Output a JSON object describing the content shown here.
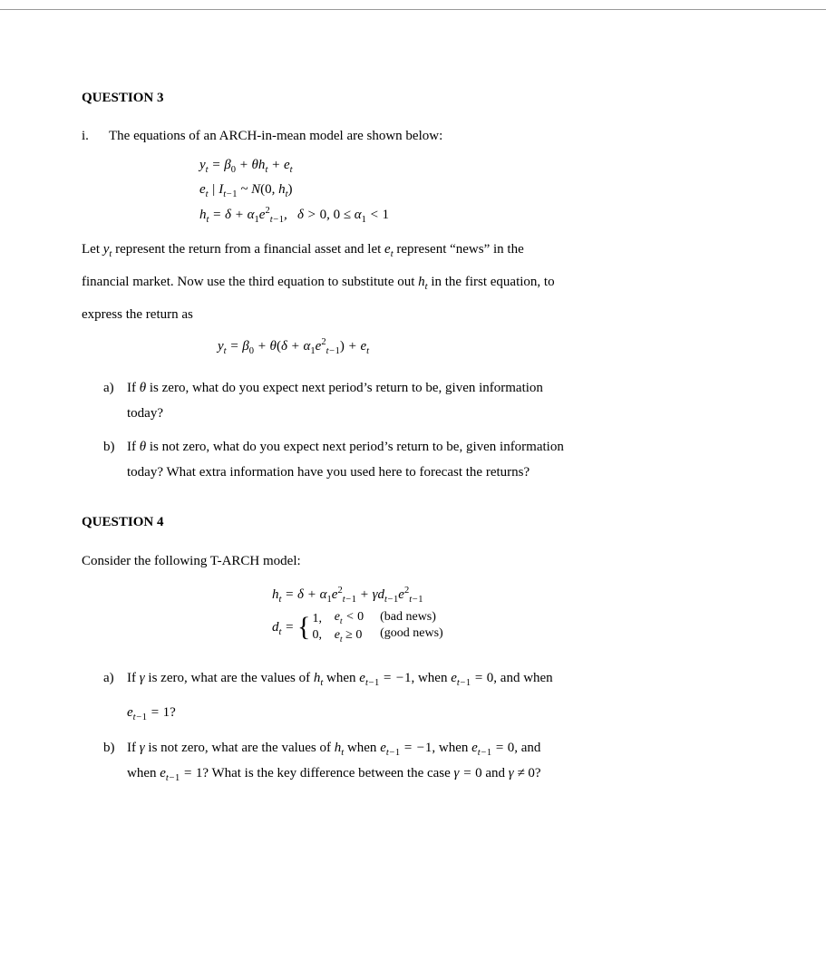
{
  "colors": {
    "text": "#000000",
    "background": "#ffffff",
    "divider": "#999999"
  },
  "typography": {
    "body_font": "Palatino Linotype, Book Antiqua, Palatino, serif",
    "math_font": "Cambria Math, Times New Roman, serif",
    "body_size_pt": 11,
    "title_weight": "bold"
  },
  "q3": {
    "title": "QUESTION 3",
    "intro_label": "i.",
    "intro_text": "The equations of an ARCH-in-mean model are shown below:",
    "eq1": "y_{t} = β_{0} + θh_{t} + e_{t}",
    "eq2": "e_{t} | I_{t−1} ~ N(0, h_{t})",
    "eq3": "h_{t} = δ + α_{1}e²_{t−1},   δ > 0, 0 ≤ α_{1} < 1",
    "para1_pre": "Let ",
    "para1_var1": "y_{t}",
    "para1_mid1": " represent the return from a financial asset and let ",
    "para1_var2": "e_{t}",
    "para1_mid2": " represent “news” in the",
    "para2": "financial market. Now use the third equation to substitute out ",
    "para2_var": "h_{t}",
    "para2_post": " in the first equation, to",
    "para3": "express the return as",
    "eq4": "y_{t} = β_{0} + θ(δ + α_{1}e²_{t−1}) + e_{t}",
    "a_label": "a)",
    "a_text_pre": "If ",
    "a_var": "θ",
    "a_text_post": " is zero, what do you expect next period’s return to be, given information",
    "a_text_line2": "today?",
    "b_label": "b)",
    "b_text_pre": "If ",
    "b_var": "θ",
    "b_text_post": " is not zero, what do you expect next period’s return to be, given information",
    "b_text_line2": "today? What extra information have you used here to forecast the returns?"
  },
  "q4": {
    "title": "QUESTION 4",
    "intro": "Consider the following T-ARCH model:",
    "eq1": "h_{t} = δ + α_{1}e²_{t−1} + γd_{t−1}e²_{t−1}",
    "dt_lhs": "d_{t} = ",
    "case1_val": "1,",
    "case2_val": "0,",
    "case1_cond": "e_{t} < 0",
    "case2_cond": "e_{t} ≥ 0",
    "case1_note": "(bad news)",
    "case2_note": "(good news)",
    "a_label": "a)",
    "a_pre": "If ",
    "a_var": "γ",
    "a_mid1": " is zero, what are the values of  ",
    "a_h": "h_{t}",
    "a_mid2": " when ",
    "a_e1": "e_{t−1} = −1",
    "a_mid3": ", when ",
    "a_e2": "e_{t−1} = 0",
    "a_mid4": ", and when",
    "a_line2_var": "e_{t−1} = 1",
    "a_line2_q": "?",
    "b_label": "b)",
    "b_pre": "If ",
    "b_var": "γ",
    "b_mid1": " is not zero, what are the values of  ",
    "b_h": "h_{t}",
    "b_mid2": " when ",
    "b_e1": "e_{t−1} = −1",
    "b_mid3": ", when ",
    "b_e2": "e_{t−1} = 0",
    "b_mid4": ", and",
    "b_line2_pre": "when ",
    "b_line2_var": "e_{t−1} = 1",
    "b_line2_mid": "? What is the key difference between the case ",
    "b_g0": "γ = 0",
    "b_and": " and ",
    "b_gn0": "γ ≠ 0",
    "b_q": "?"
  }
}
